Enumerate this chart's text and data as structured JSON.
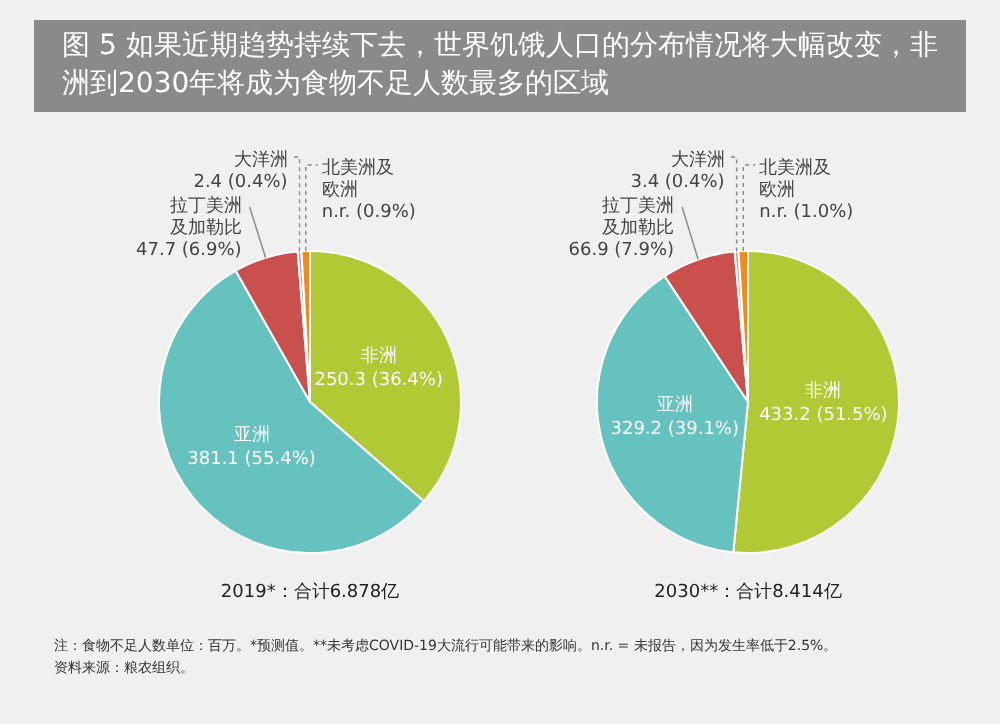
{
  "chart_data": [
    {
      "type": "pie",
      "title": "图 5 如果近期趋势持续下去，世界饥饿人口的分布情况将大幅改变，非洲到2030年将成为食物不足人数最多的区域",
      "subtitle": "2019*：合计6.878亿",
      "categories": [
        "非洲",
        "亚洲",
        "拉丁美洲及加勒比",
        "大洋洲",
        "北美洲及欧洲"
      ],
      "values": [
        36.4,
        55.4,
        6.9,
        0.4,
        0.9
      ],
      "colors": [
        "#b0c935",
        "#66c2bf",
        "#c9504c",
        "#a8a8a8",
        "#f08a1a"
      ],
      "value_labels": [
        "250.3 (36.4%)",
        "381.1 (55.4%)",
        "47.7 (6.9%)",
        "2.4 (0.4%)",
        "n.r. (0.9%)"
      ],
      "legend": false,
      "annotations": [
        "注：食物不足人数单位：百万。*预测值。**未考虑COVID-19大流行可能带来的影响。n.r. = 未报告，因为发生率低于2.5%。",
        "资料来源：粮农组织。"
      ]
    },
    {
      "type": "pie",
      "subtitle": "2030**：合计8.414亿",
      "categories": [
        "非洲",
        "亚洲",
        "拉丁美洲及加勒比",
        "大洋洲",
        "北美洲及欧洲"
      ],
      "values": [
        51.5,
        39.1,
        7.9,
        0.4,
        1.0
      ],
      "colors": [
        "#b0c935",
        "#66c2bf",
        "#c9504c",
        "#a8a8a8",
        "#f08a1a"
      ],
      "value_labels": [
        "433.2 (51.5%)",
        "329.2 (39.1%)",
        "66.9 (7.9%)",
        "3.4 (0.4%)",
        "n.r. (1.0%)"
      ],
      "legend": false
    }
  ]
}
